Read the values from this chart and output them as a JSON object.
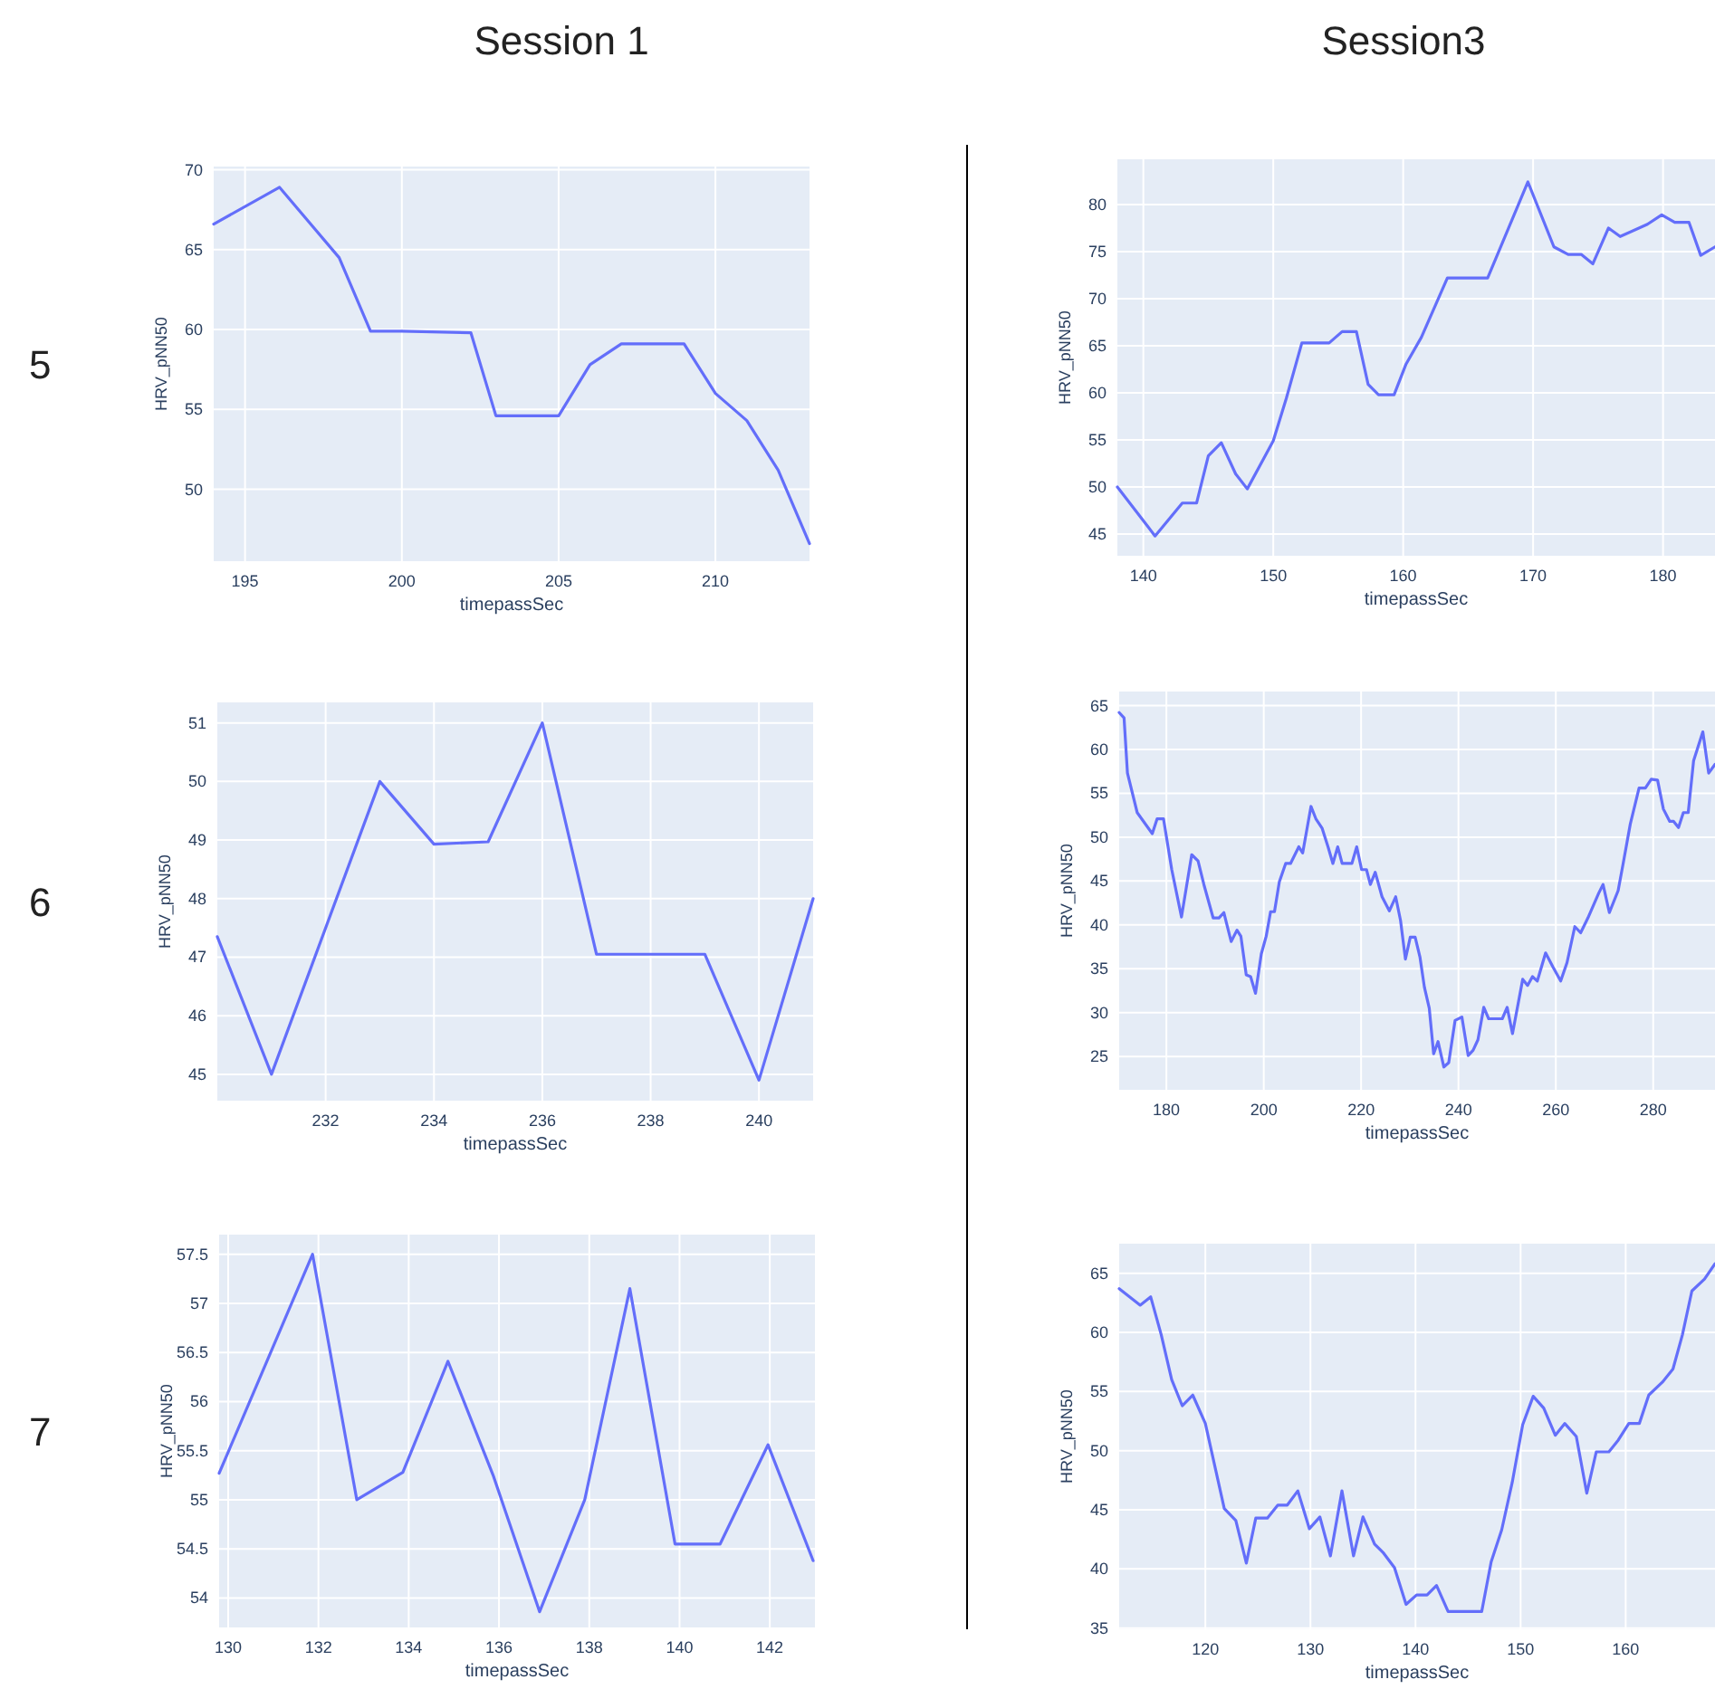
{
  "chart_data": [
    {
      "type": "line",
      "title": "Session 1",
      "annotations": [
        "5"
      ],
      "xlabel": "timepassSec",
      "ylabel": "HRV_pNN50",
      "xlim": [
        194,
        213
      ],
      "ylim": [
        45.5,
        70.2
      ],
      "xticks": [
        195,
        200,
        205,
        210
      ],
      "yticks": [
        50,
        55,
        60,
        65,
        70
      ],
      "grid": true,
      "marker": "none",
      "line_style": "solid",
      "series": [
        {
          "color": "#636efa",
          "x": [
            194,
            196.1,
            198,
            199,
            200,
            202.2,
            203,
            205,
            206,
            207,
            209,
            210,
            211,
            212,
            213
          ],
          "values": [
            66.6,
            68.9,
            64.5,
            59.9,
            59.9,
            59.8,
            54.6,
            54.6,
            57.8,
            59.1,
            59.1,
            56,
            54.3,
            51.2,
            46.6
          ]
        }
      ]
    },
    {
      "type": "line",
      "title": "Session3",
      "xlabel": "timepassSec",
      "ylabel": "HRV_pNN50",
      "xlim": [
        138,
        184
      ],
      "ylim": [
        42.7,
        84.8
      ],
      "xticks": [
        140,
        150,
        160,
        170,
        180
      ],
      "yticks": [
        45,
        50,
        55,
        60,
        65,
        70,
        75,
        80
      ],
      "grid": true,
      "marker": "none",
      "line_style": "solid",
      "series": [
        {
          "color": "#636efa",
          "x": [
            138,
            140.9,
            143,
            144.1,
            145,
            146,
            147.1,
            148,
            150,
            151,
            152.2,
            154.3,
            155.3,
            156.4,
            157.3,
            158.1,
            159.3,
            160.2,
            161.4,
            163.4,
            166.5,
            169.6,
            171.6,
            172.7,
            173.7,
            174.6,
            175.8,
            176.7,
            178.8,
            179.9,
            180.9,
            182,
            182.9,
            184
          ],
          "values": [
            50,
            44.8,
            48.3,
            48.3,
            53.3,
            54.7,
            51.4,
            49.8,
            54.9,
            59.4,
            65.3,
            65.3,
            66.5,
            66.5,
            60.9,
            59.8,
            59.8,
            63,
            65.9,
            72.2,
            72.2,
            82.4,
            75.5,
            74.7,
            74.7,
            73.7,
            77.5,
            76.6,
            77.9,
            78.9,
            78.1,
            78.1,
            74.6,
            75.5
          ]
        }
      ]
    },
    {
      "type": "line",
      "annotations": [
        "6"
      ],
      "xlabel": "timepassSec",
      "ylabel": "HRV_pNN50",
      "xlim": [
        230,
        241
      ],
      "ylim": [
        44.55,
        51.35
      ],
      "xticks": [
        232,
        234,
        236,
        238,
        240
      ],
      "yticks": [
        45,
        46,
        47,
        48,
        49,
        50,
        51
      ],
      "grid": true,
      "marker": "none",
      "line_style": "solid",
      "series": [
        {
          "color": "#636efa",
          "x": [
            230,
            231,
            233,
            234,
            235,
            236,
            237,
            239,
            240,
            241
          ],
          "values": [
            47.35,
            45,
            50,
            48.93,
            48.97,
            51,
            47.05,
            47.05,
            44.9,
            48
          ]
        }
      ]
    },
    {
      "type": "line",
      "xlabel": "timepassSec",
      "ylabel": "HRV_pNN50",
      "xlim": [
        170.3,
        292.7
      ],
      "ylim": [
        21.2,
        66.6
      ],
      "xticks": [
        180,
        200,
        220,
        240,
        260,
        280
      ],
      "yticks": [
        25,
        30,
        35,
        40,
        45,
        50,
        55,
        60,
        65
      ],
      "grid": true,
      "marker": "none",
      "line_style": "solid",
      "series": [
        {
          "color": "#636efa",
          "x": [
            170.3,
            171.3,
            172,
            174,
            177.1,
            178.1,
            179.4,
            181.1,
            183.1,
            185.2,
            186.5,
            187.7,
            189.6,
            190.8,
            191.8,
            193.3,
            194.5,
            195.3,
            196.4,
            197.3,
            198.3,
            199.5,
            200.5,
            201.4,
            202.2,
            203.2,
            204.5,
            205.5,
            207.2,
            208,
            209.7,
            210.7,
            212,
            213.2,
            214.2,
            215.2,
            216.1,
            218.1,
            219.1,
            220.1,
            221.1,
            221.9,
            222.9,
            224.3,
            225.8,
            227.1,
            228.1,
            229.1,
            230.1,
            231.1,
            232.1,
            233,
            234,
            234.9,
            235.8,
            237,
            238,
            239.3,
            240.7,
            242,
            243,
            244,
            245.2,
            246.2,
            249,
            250,
            251.1,
            253.2,
            254.2,
            255.2,
            256.2,
            257.9,
            259.4,
            261,
            262.3,
            263.9,
            265.1,
            266.6,
            268.8,
            269.7,
            271,
            272.8,
            273.8,
            275.3,
            277.1,
            278.4,
            279.6,
            280.9,
            282.1,
            283.4,
            284.2,
            285.2,
            286.2,
            287.2,
            288.3,
            290.2,
            291.4,
            292.7
          ],
          "values": [
            64.2,
            63.6,
            57.3,
            52.8,
            50.4,
            52.1,
            52.1,
            46.3,
            40.9,
            48,
            47.3,
            44.6,
            40.8,
            40.8,
            41.4,
            38.1,
            39.4,
            38.7,
            34.3,
            34.1,
            32.2,
            36.7,
            38.7,
            41.5,
            41.5,
            44.9,
            47,
            47,
            48.9,
            48.2,
            53.5,
            52.1,
            51,
            48.9,
            47,
            48.9,
            47,
            47,
            48.9,
            46.3,
            46.3,
            44.6,
            46,
            43.2,
            41.6,
            43.2,
            40.5,
            36.1,
            38.6,
            38.6,
            36.3,
            32.9,
            30.5,
            25.3,
            26.7,
            23.8,
            24.3,
            29.1,
            29.5,
            25.1,
            25.7,
            26.9,
            30.6,
            29.3,
            29.3,
            30.6,
            27.6,
            33.8,
            33.1,
            34.1,
            33.6,
            36.8,
            35.2,
            33.6,
            35.7,
            39.8,
            39.1,
            40.8,
            43.6,
            44.6,
            41.4,
            43.9,
            46.9,
            51.5,
            55.6,
            55.6,
            56.6,
            56.5,
            53.2,
            51.8,
            51.8,
            51.1,
            52.8,
            52.8,
            58.7,
            62,
            57.3,
            58.3
          ]
        }
      ]
    },
    {
      "type": "line",
      "annotations": [
        "7"
      ],
      "xlabel": "timepassSec",
      "ylabel": "HRV_pNN50",
      "xlim": [
        129.8,
        143
      ],
      "ylim": [
        53.7,
        57.7
      ],
      "xticks": [
        130,
        132,
        134,
        136,
        138,
        140,
        142
      ],
      "yticks": [
        54,
        54.5,
        55,
        55.5,
        56,
        56.5,
        57,
        57.5
      ],
      "grid": true,
      "marker": "none",
      "line_style": "solid",
      "series": [
        {
          "color": "#636efa",
          "x": [
            129.8,
            131.87,
            132.85,
            133.87,
            134.87,
            135.87,
            136.9,
            137.9,
            138.9,
            139.9,
            140.9,
            141.96,
            142.96
          ],
          "values": [
            55.27,
            57.5,
            55,
            55.28,
            56.41,
            55.25,
            53.86,
            55,
            57.15,
            54.55,
            54.55,
            55.56,
            54.38
          ]
        }
      ]
    },
    {
      "type": "line",
      "xlabel": "timepassSec",
      "ylabel": "HRV_pNN50",
      "xlim": [
        111.8,
        168.5
      ],
      "ylim": [
        34.9,
        67.5
      ],
      "xticks": [
        120,
        130,
        140,
        150,
        160
      ],
      "yticks": [
        35,
        40,
        45,
        50,
        55,
        60,
        65
      ],
      "grid": true,
      "marker": "none",
      "line_style": "solid",
      "series": [
        {
          "color": "#636efa",
          "x": [
            111.8,
            113.8,
            114.8,
            115.8,
            116.8,
            117.8,
            118.8,
            120,
            121,
            121.8,
            122.9,
            123.9,
            124.8,
            125.9,
            126.9,
            127.8,
            128.8,
            129.9,
            130.9,
            131.9,
            133,
            134.1,
            135,
            136.1,
            136.9,
            138,
            139.1,
            140.1,
            141.1,
            142,
            143.1,
            146.3,
            147.2,
            148.2,
            149.2,
            150.2,
            151.2,
            152.2,
            153.3,
            154.2,
            155.3,
            156.3,
            157.2,
            158.4,
            159.3,
            160.3,
            161.3,
            162.2,
            163.5,
            164.5,
            165.4,
            166.3,
            167.5,
            168.5
          ],
          "values": [
            63.7,
            62.3,
            63,
            59.8,
            56,
            53.8,
            54.7,
            52.3,
            48.3,
            45.1,
            44.1,
            40.5,
            44.3,
            44.3,
            45.4,
            45.4,
            46.6,
            43.4,
            44.4,
            41.1,
            46.6,
            41.1,
            44.4,
            42.1,
            41.4,
            40.1,
            37,
            37.8,
            37.8,
            38.6,
            36.4,
            36.4,
            40.6,
            43.3,
            47.3,
            52.2,
            54.6,
            53.6,
            51.3,
            52.3,
            51.2,
            46.4,
            49.9,
            49.9,
            50.9,
            52.3,
            52.3,
            54.7,
            55.8,
            56.9,
            59.8,
            63.5,
            64.5,
            65.8
          ]
        }
      ]
    }
  ]
}
